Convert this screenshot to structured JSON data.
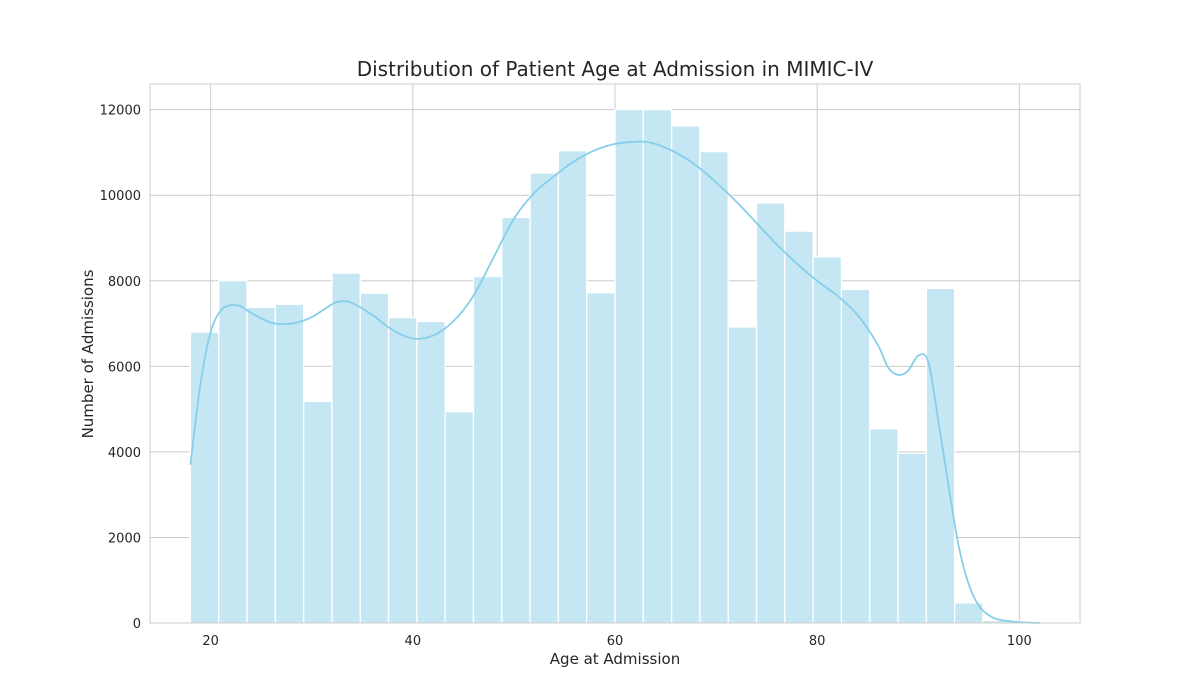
{
  "chart_data": {
    "type": "bar",
    "title": "Distribution of Patient Age at Admission in MIMIC-IV",
    "xlabel": "Age at Admission",
    "ylabel": "Number of Admissions",
    "xlim": [
      14,
      106
    ],
    "ylim": [
      0,
      12600
    ],
    "xticks": [
      20,
      40,
      60,
      80,
      100
    ],
    "yticks": [
      0,
      2000,
      4000,
      6000,
      8000,
      10000,
      12000
    ],
    "grid": true,
    "bin_edges": [
      18,
      20.8,
      23.6,
      26.4,
      29.2,
      32,
      34.8,
      37.6,
      40.4,
      43.2,
      46,
      48.8,
      51.6,
      54.4,
      57.2,
      60,
      62.8,
      65.6,
      68.4,
      71.2,
      74,
      76.8,
      79.6,
      82.4,
      85.2,
      88,
      90.8,
      93.6,
      96.4,
      99.2,
      102
    ],
    "values": [
      6800,
      8000,
      7380,
      7450,
      5180,
      8180,
      7710,
      7140,
      7050,
      4940,
      8100,
      9480,
      10520,
      11040,
      7720,
      12000,
      12000,
      11620,
      11020,
      6920,
      9820,
      9160,
      8560,
      7800,
      4540,
      3970,
      7820,
      470,
      60,
      40
    ],
    "kde": {
      "x": [
        18,
        19,
        20,
        21,
        22,
        23,
        24,
        26,
        28,
        30,
        32,
        33,
        34,
        36,
        38,
        40,
        42,
        44,
        46,
        48,
        50,
        52,
        54,
        56,
        58,
        60,
        62,
        63,
        64,
        66,
        68,
        70,
        72,
        74,
        76,
        78,
        80,
        82,
        84,
        86,
        87,
        88,
        89,
        90,
        91,
        92,
        93,
        94,
        95,
        96,
        97,
        98,
        100,
        102
      ],
      "y": [
        3700,
        5600,
        6800,
        7300,
        7430,
        7400,
        7250,
        7020,
        7000,
        7150,
        7450,
        7520,
        7480,
        7200,
        6850,
        6650,
        6720,
        7050,
        7650,
        8550,
        9450,
        10050,
        10450,
        10800,
        11050,
        11200,
        11250,
        11250,
        11200,
        11000,
        10700,
        10300,
        9850,
        9350,
        8850,
        8400,
        8000,
        7650,
        7200,
        6500,
        5980,
        5800,
        5900,
        6250,
        6100,
        4700,
        3200,
        1800,
        900,
        400,
        180,
        80,
        20,
        0
      ]
    }
  }
}
